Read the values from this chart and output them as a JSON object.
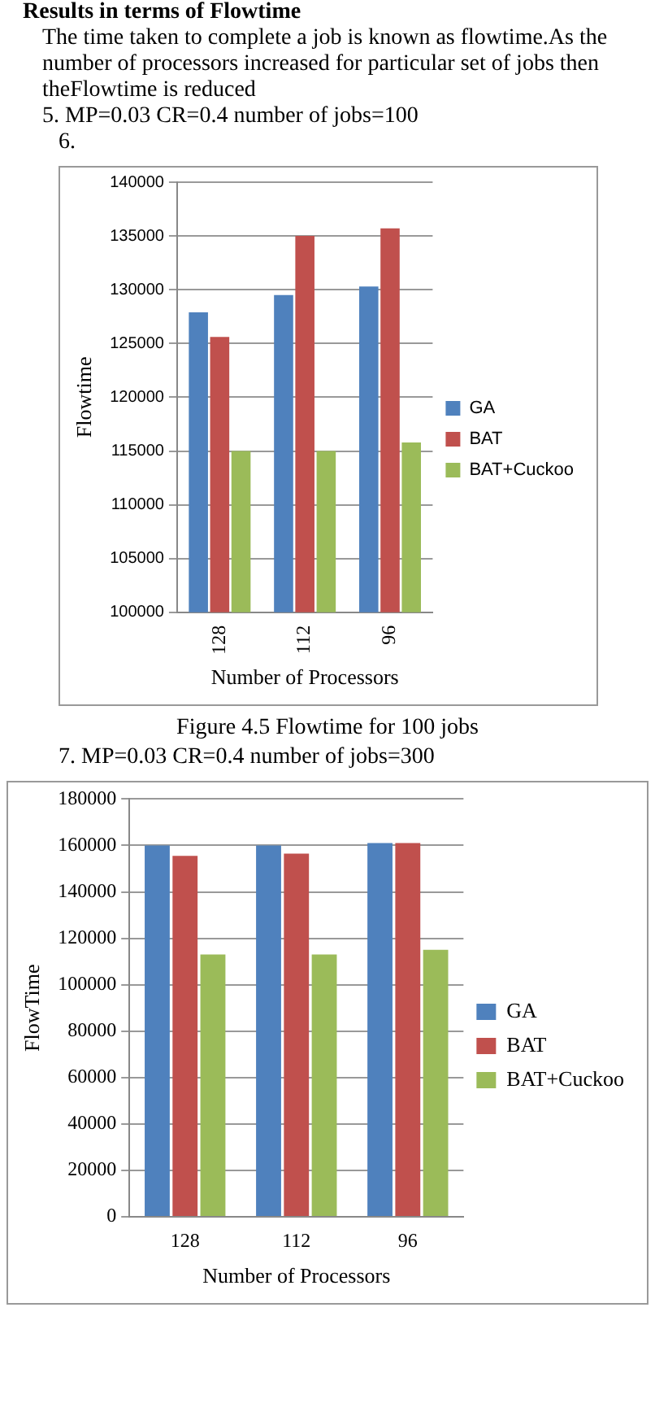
{
  "chart_data": [
    {
      "type": "bar",
      "title": "Figure 4.5 Flowtime for 100 jobs",
      "annotations": [
        "Results in terms of Flowtime",
        "The time taken to complete a job is known as flowtime.As the number of processors increased for particular set of jobs then theFlowtime is reduced",
        "5.    MP=0.03 CR=0.4  number of jobs=100",
        "6."
      ],
      "xlabel": "Number of Processors",
      "ylabel": "Flowtime",
      "categories": [
        "128",
        "112",
        "96"
      ],
      "series": [
        {
          "name": "GA",
          "color": "#4f81bd",
          "values": [
            127900,
            129500,
            130300
          ]
        },
        {
          "name": "BAT",
          "color": "#c0504d",
          "values": [
            125600,
            135000,
            135700
          ]
        },
        {
          "name": "BAT+Cuckoo",
          "color": "#9bbb59",
          "values": [
            115000,
            115000,
            115800
          ]
        }
      ],
      "ylim": [
        100000,
        140000
      ],
      "yticks": [
        100000,
        105000,
        110000,
        115000,
        120000,
        125000,
        130000,
        135000,
        140000
      ],
      "grid": "y",
      "legend": "right"
    },
    {
      "type": "bar",
      "annotations": [
        "7.    MP=0.03 CR=0.4  number of jobs=300"
      ],
      "xlabel": "Number of Processors",
      "ylabel": "FlowTime",
      "categories": [
        "128",
        "112",
        "96"
      ],
      "series": [
        {
          "name": "GA",
          "color": "#4f81bd",
          "values": [
            160000,
            160000,
            161000
          ]
        },
        {
          "name": "BAT",
          "color": "#c0504d",
          "values": [
            155500,
            156500,
            161000
          ]
        },
        {
          "name": "BAT+Cuckoo",
          "color": "#9bbb59",
          "values": [
            113000,
            113000,
            115000
          ]
        }
      ],
      "ylim": [
        0,
        180000
      ],
      "yticks": [
        0,
        20000,
        40000,
        60000,
        80000,
        100000,
        120000,
        140000,
        160000,
        180000
      ],
      "grid": "y",
      "legend": "right"
    }
  ]
}
